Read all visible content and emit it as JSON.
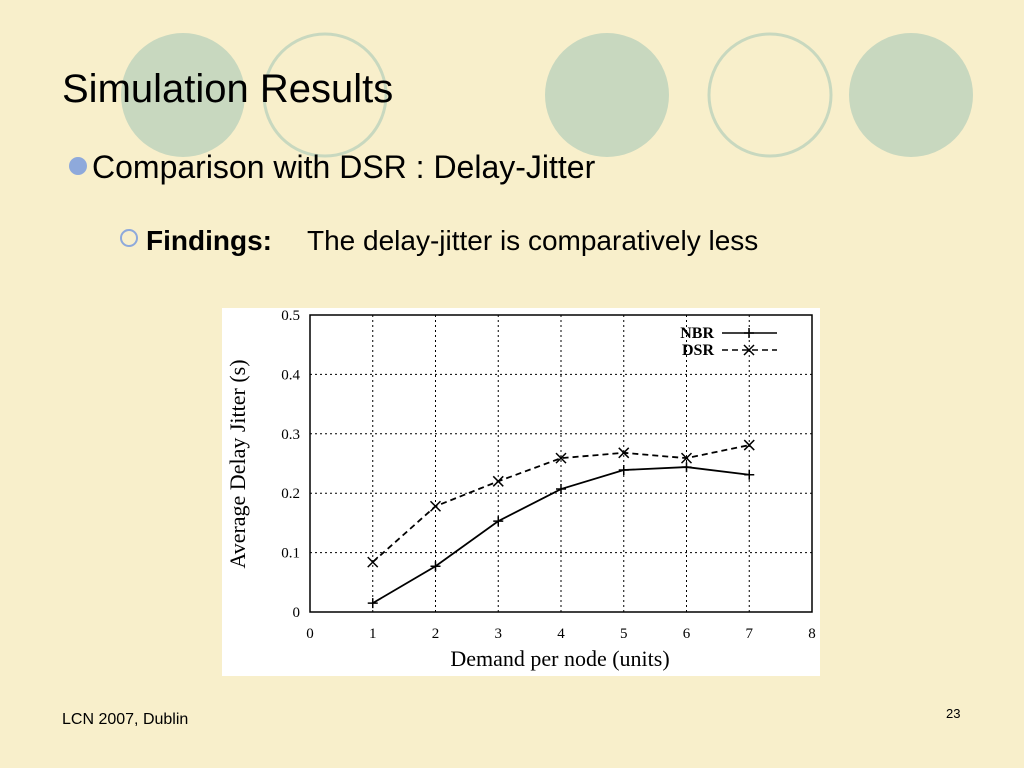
{
  "slide": {
    "title": "Simulation Results",
    "bullet": "Comparison with DSR : Delay-Jitter",
    "sub_bullet_label": "Findings:",
    "sub_bullet_text": "The delay-jitter is comparatively less",
    "footer": "LCN 2007, Dublin",
    "page_number": "23"
  },
  "chart_data": {
    "type": "line",
    "x_label": "Demand per node (units)",
    "y_label": "Average Delay Jitter (s)",
    "x": [
      1,
      2,
      3,
      4,
      5,
      6,
      7
    ],
    "series": [
      {
        "name": "NBR",
        "color": "#000000",
        "marker": "plus",
        "dashed": false,
        "values": [
          0.015,
          0.077,
          0.153,
          0.207,
          0.239,
          0.244,
          0.231
        ]
      },
      {
        "name": "DSR",
        "color": "#000000",
        "marker": "cross",
        "dashed": true,
        "values": [
          0.084,
          0.178,
          0.22,
          0.259,
          0.268,
          0.259,
          0.281
        ]
      }
    ],
    "xlim": [
      0,
      8
    ],
    "xticks": [
      0,
      1,
      2,
      3,
      4,
      5,
      6,
      7,
      8
    ],
    "ylim": [
      0,
      0.5
    ],
    "yticks": [
      0,
      0.1,
      0.2,
      0.3,
      0.4,
      0.5
    ],
    "grid": true,
    "legend": "top-right"
  }
}
